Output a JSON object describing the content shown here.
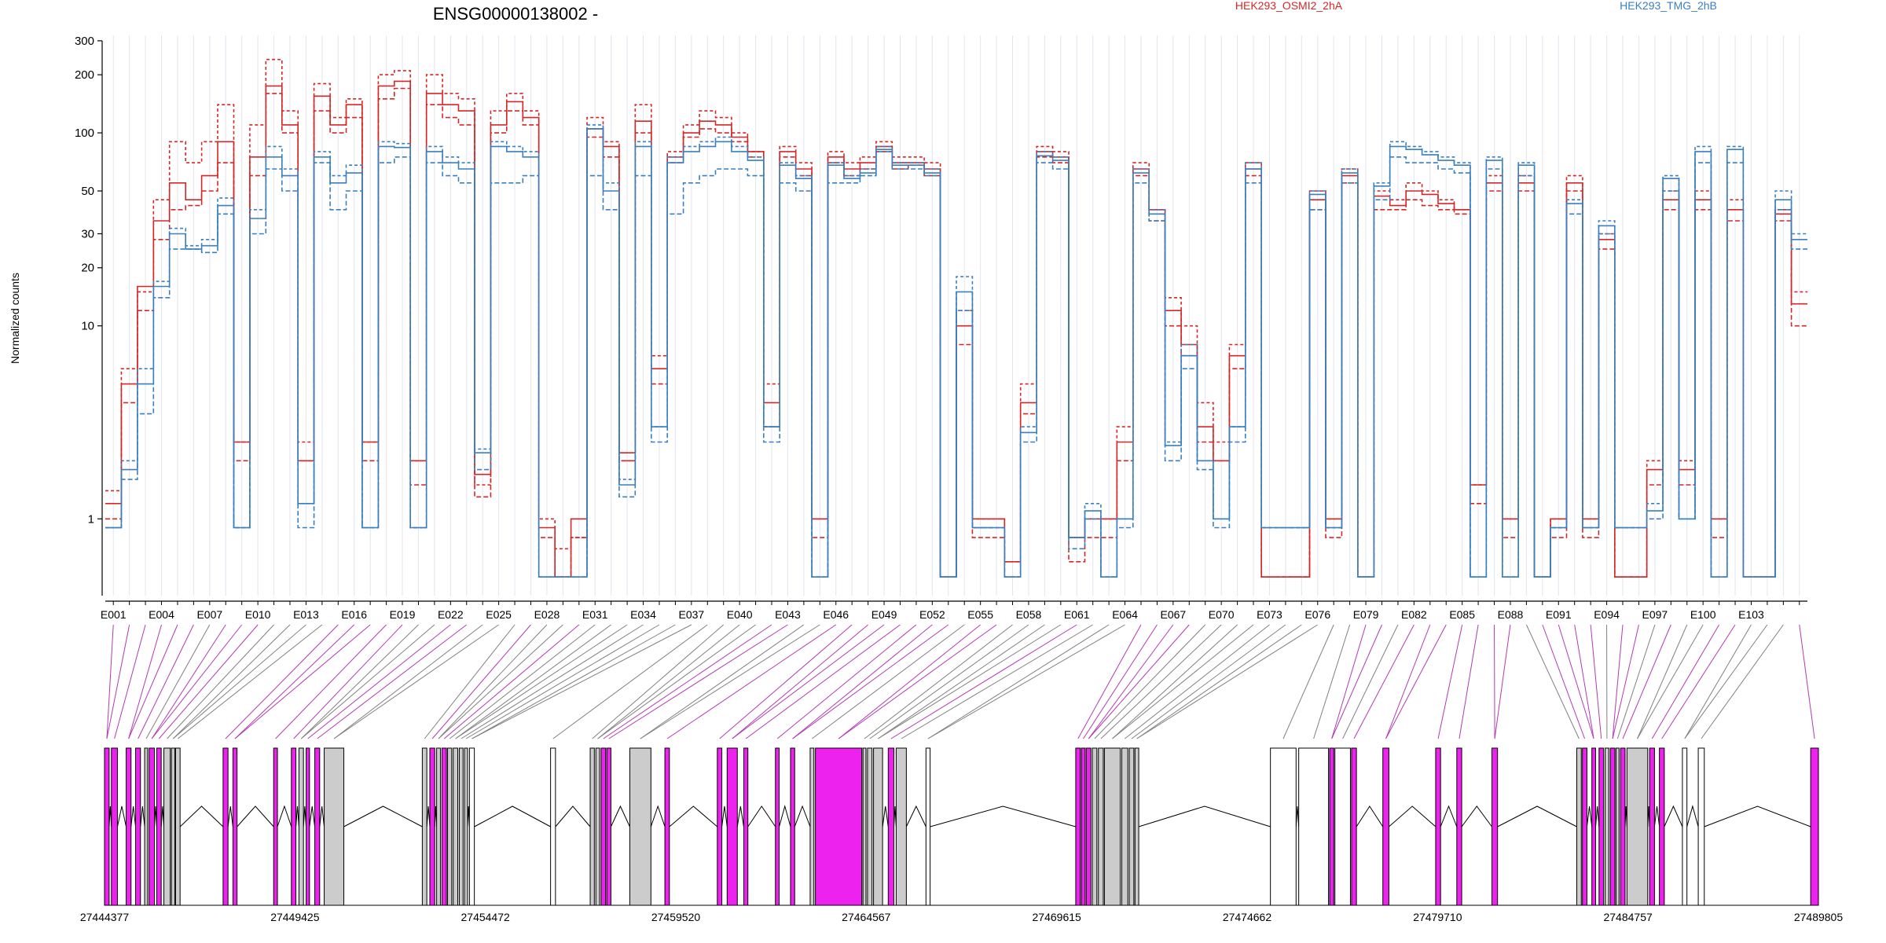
{
  "title": "ENSG00000138002 -",
  "chart_data": {
    "type": "line",
    "title": "ENSG00000138002 -",
    "ylabel": "Normalized counts",
    "yscale": "log",
    "ylim": [
      0.4,
      320
    ],
    "y_ticks": [
      1,
      10,
      20,
      30,
      50,
      100,
      200,
      300
    ],
    "grid": "vertical",
    "legend": [
      {
        "label": "HEK293_OSMI2_2hA",
        "color": "#d62728"
      },
      {
        "label": "HEK293_TMG_2hB",
        "color": "#3a7fc0"
      }
    ],
    "exon_ticks": [
      "E001",
      "E004",
      "E007",
      "E010",
      "E013",
      "E016",
      "E019",
      "E022",
      "E025",
      "E028",
      "E031",
      "E034",
      "E037",
      "E040",
      "E043",
      "E046",
      "E049",
      "E052",
      "E055",
      "E058",
      "E061",
      "E064",
      "E067",
      "E070",
      "E073",
      "E076",
      "E079",
      "E082",
      "E085",
      "E088",
      "E091",
      "E094",
      "E097",
      "E100",
      "E103"
    ],
    "exon_count": 106,
    "series": [
      {
        "group": "HEK293_OSMI2_2hA",
        "color": "#d62728",
        "dash": "4,3",
        "values": [
          1.4,
          6,
          15,
          45,
          90,
          70,
          90,
          140,
          2.5,
          110,
          240,
          130,
          2.5,
          180,
          120,
          150,
          2.5,
          200,
          210,
          2,
          200,
          160,
          150,
          1.5,
          130,
          160,
          130,
          1,
          0.7,
          0.8,
          120,
          90,
          2,
          140,
          7,
          80,
          110,
          130,
          120,
          100,
          80,
          5,
          85,
          70,
          1,
          80,
          70,
          75,
          90,
          75,
          75,
          70,
          0.5,
          12,
          1,
          1,
          0.6,
          5,
          85,
          80,
          0.8,
          1,
          1,
          3,
          70,
          40,
          14,
          10,
          4,
          2.5,
          8,
          70,
          0.5,
          0.5,
          0.5,
          50,
          1,
          65,
          0.5,
          50,
          45,
          55,
          50,
          45,
          40,
          1.5,
          60,
          1,
          60,
          0.5,
          1,
          60,
          1,
          30,
          0.5,
          0.5,
          2,
          50,
          2,
          50,
          1,
          45,
          0.5,
          0.5,
          40,
          15
        ]
      },
      {
        "group": "HEK293_OSMI2_2hA",
        "color": "#d62728",
        "dash": "none",
        "values": [
          1.2,
          5,
          16,
          35,
          55,
          45,
          60,
          90,
          2.5,
          75,
          175,
          110,
          2,
          155,
          110,
          140,
          2.5,
          175,
          185,
          2,
          160,
          140,
          130,
          1.7,
          110,
          145,
          120,
          0.9,
          0.5,
          1,
          105,
          85,
          2.2,
          115,
          6,
          75,
          100,
          115,
          110,
          95,
          80,
          4,
          80,
          65,
          1,
          75,
          65,
          70,
          85,
          70,
          70,
          65,
          0.5,
          10,
          1,
          1,
          0.6,
          4,
          80,
          75,
          0.8,
          1,
          1,
          2.5,
          65,
          40,
          12,
          8,
          3,
          2,
          7,
          65,
          0.5,
          0.5,
          0.5,
          45,
          1,
          60,
          0.5,
          47,
          42,
          50,
          48,
          43,
          40,
          1.5,
          55,
          1,
          55,
          0.5,
          1,
          55,
          1,
          28,
          0.5,
          0.5,
          1.8,
          45,
          1.8,
          45,
          1,
          40,
          0.5,
          0.5,
          38,
          13
        ]
      },
      {
        "group": "HEK293_OSMI2_2hA",
        "color": "#d62728",
        "dash": "6,3",
        "values": [
          1,
          4,
          12,
          28,
          40,
          42,
          50,
          70,
          2,
          60,
          160,
          100,
          2,
          130,
          100,
          120,
          2,
          150,
          170,
          1.5,
          140,
          120,
          110,
          1.3,
          100,
          130,
          110,
          0.8,
          0.5,
          0.8,
          95,
          75,
          2,
          100,
          5,
          70,
          95,
          105,
          100,
          90,
          75,
          3,
          75,
          60,
          0.8,
          70,
          60,
          65,
          80,
          65,
          68,
          60,
          0.5,
          8,
          0.8,
          0.8,
          0.5,
          3.5,
          75,
          70,
          0.6,
          0.8,
          0.8,
          2,
          60,
          35,
          10,
          7,
          2.5,
          2,
          6,
          60,
          0.5,
          0.5,
          0.5,
          40,
          0.8,
          55,
          0.5,
          40,
          40,
          45,
          42,
          40,
          38,
          1.2,
          50,
          0.8,
          50,
          0.5,
          0.8,
          50,
          0.8,
          25,
          0.5,
          0.5,
          1.5,
          40,
          1.5,
          40,
          0.8,
          35,
          0.5,
          0.5,
          35,
          10
        ]
      },
      {
        "group": "HEK293_TMG_2hB",
        "color": "#3a7fc0",
        "dash": "4,3",
        "values": [
          0.9,
          2,
          6,
          17,
          32,
          26,
          28,
          46,
          0.9,
          40,
          85,
          65,
          1.2,
          80,
          60,
          68,
          0.9,
          90,
          88,
          0.9,
          85,
          75,
          70,
          2.3,
          90,
          85,
          80,
          0.5,
          0.5,
          0.5,
          110,
          55,
          1.6,
          90,
          3,
          75,
          85,
          90,
          95,
          85,
          75,
          3,
          70,
          60,
          0.5,
          70,
          60,
          65,
          85,
          70,
          70,
          65,
          0.5,
          18,
          0.9,
          0.9,
          0.5,
          3,
          80,
          75,
          0.8,
          1.2,
          0.5,
          1,
          65,
          40,
          2.5,
          8,
          2,
          1,
          3,
          70,
          0.9,
          0.9,
          0.9,
          50,
          0.9,
          65,
          0.5,
          55,
          90,
          85,
          80,
          75,
          70,
          0.5,
          75,
          0.5,
          70,
          0.5,
          0.9,
          45,
          0.9,
          35,
          0.9,
          0.9,
          1.2,
          60,
          1,
          85,
          0.5,
          85,
          0.5,
          0.5,
          50,
          30
        ]
      },
      {
        "group": "HEK293_TMG_2hB",
        "color": "#3a7fc0",
        "dash": "none",
        "values": [
          0.9,
          1.8,
          5,
          16,
          30,
          25,
          26,
          42,
          0.9,
          36,
          75,
          60,
          1.2,
          75,
          55,
          62,
          0.9,
          85,
          84,
          0.9,
          80,
          70,
          65,
          2.2,
          85,
          80,
          75,
          0.5,
          0.5,
          0.5,
          105,
          50,
          1.5,
          85,
          3,
          70,
          80,
          85,
          90,
          80,
          72,
          3,
          68,
          58,
          0.5,
          68,
          58,
          62,
          82,
          68,
          68,
          62,
          0.5,
          15,
          0.9,
          0.9,
          0.5,
          2.8,
          76,
          72,
          0.8,
          1.1,
          0.5,
          1,
          62,
          38,
          2.4,
          7,
          2,
          1,
          3,
          65,
          0.9,
          0.9,
          0.9,
          48,
          0.9,
          62,
          0.5,
          53,
          85,
          82,
          77,
          72,
          68,
          0.5,
          72,
          0.5,
          68,
          0.5,
          0.9,
          43,
          0.9,
          33,
          0.9,
          0.9,
          1.1,
          58,
          1,
          80,
          0.5,
          82,
          0.5,
          0.5,
          45,
          28
        ]
      },
      {
        "group": "HEK293_TMG_2hB",
        "color": "#3a7fc0",
        "dash": "6,3",
        "values": [
          0.9,
          1.6,
          3.5,
          14,
          25,
          25,
          24,
          38,
          0.9,
          30,
          65,
          50,
          0.9,
          70,
          40,
          50,
          0.9,
          70,
          75,
          0.9,
          70,
          60,
          55,
          1.8,
          55,
          55,
          60,
          0.5,
          0.5,
          0.5,
          60,
          40,
          1.3,
          60,
          2.5,
          38,
          55,
          60,
          65,
          65,
          60,
          2.5,
          55,
          50,
          0.5,
          55,
          55,
          60,
          80,
          65,
          65,
          60,
          0.5,
          12,
          0.9,
          0.9,
          0.5,
          2.5,
          70,
          65,
          0.7,
          1,
          0.5,
          0.9,
          55,
          35,
          2,
          6,
          1.8,
          0.9,
          2.5,
          55,
          0.9,
          0.9,
          0.9,
          40,
          0.9,
          55,
          0.5,
          45,
          75,
          70,
          70,
          65,
          62,
          0.5,
          65,
          0.5,
          60,
          0.5,
          0.9,
          38,
          0.9,
          30,
          0.9,
          0.9,
          1,
          50,
          1,
          70,
          0.5,
          70,
          0.5,
          0.5,
          40,
          25
        ]
      }
    ],
    "genomic_axis": {
      "start": 27444377,
      "end": 27489805,
      "tick_labels": [
        "27444377",
        "27449425",
        "27454472",
        "27459520",
        "27464567",
        "27469615",
        "27474662",
        "27479710",
        "27484757",
        "27489805"
      ]
    },
    "exon_colors": {
      "differential": "#ee22ee",
      "default": "#cccccc",
      "empty": "#ffffff"
    }
  },
  "gene_model": {
    "exon_blocks": [
      {
        "start": 27444377,
        "end": 27444500,
        "fill": "differential"
      },
      {
        "start": 27444560,
        "end": 27444720,
        "fill": "differential"
      },
      {
        "start": 27444950,
        "end": 27445080,
        "fill": "differential"
      },
      {
        "start": 27445200,
        "end": 27445330,
        "fill": "differential"
      },
      {
        "start": 27445440,
        "end": 27445520,
        "fill": "default"
      },
      {
        "start": 27445560,
        "end": 27445700,
        "fill": "differential"
      },
      {
        "start": 27445760,
        "end": 27445880,
        "fill": "differential"
      },
      {
        "start": 27445950,
        "end": 27446120,
        "fill": "default"
      },
      {
        "start": 27446150,
        "end": 27446240,
        "fill": "default"
      },
      {
        "start": 27446260,
        "end": 27446380,
        "fill": "default"
      },
      {
        "start": 27447520,
        "end": 27447650,
        "fill": "differential"
      },
      {
        "start": 27447780,
        "end": 27447890,
        "fill": "differential"
      },
      {
        "start": 27448860,
        "end": 27448960,
        "fill": "differential"
      },
      {
        "start": 27449330,
        "end": 27449450,
        "fill": "differential"
      },
      {
        "start": 27449530,
        "end": 27449650,
        "fill": "default"
      },
      {
        "start": 27449720,
        "end": 27449810,
        "fill": "differential"
      },
      {
        "start": 27449950,
        "end": 27450080,
        "fill": "differential"
      },
      {
        "start": 27450200,
        "end": 27450720,
        "fill": "default"
      },
      {
        "start": 27452800,
        "end": 27452920,
        "fill": "default"
      },
      {
        "start": 27453000,
        "end": 27453130,
        "fill": "differential"
      },
      {
        "start": 27453180,
        "end": 27453280,
        "fill": "default"
      },
      {
        "start": 27453320,
        "end": 27453440,
        "fill": "differential"
      },
      {
        "start": 27453470,
        "end": 27453580,
        "fill": "default"
      },
      {
        "start": 27453620,
        "end": 27453740,
        "fill": "default"
      },
      {
        "start": 27453780,
        "end": 27453880,
        "fill": "default"
      },
      {
        "start": 27453920,
        "end": 27454000,
        "fill": "default"
      },
      {
        "start": 27454050,
        "end": 27454180,
        "fill": "empty"
      },
      {
        "start": 27456200,
        "end": 27456330,
        "fill": "empty"
      },
      {
        "start": 27457250,
        "end": 27457360,
        "fill": "default"
      },
      {
        "start": 27457400,
        "end": 27457500,
        "fill": "default"
      },
      {
        "start": 27457540,
        "end": 27457660,
        "fill": "differential"
      },
      {
        "start": 27457690,
        "end": 27457800,
        "fill": "differential"
      },
      {
        "start": 27458300,
        "end": 27458860,
        "fill": "default"
      },
      {
        "start": 27459230,
        "end": 27459350,
        "fill": "differential"
      },
      {
        "start": 27460620,
        "end": 27460740,
        "fill": "differential"
      },
      {
        "start": 27460880,
        "end": 27461150,
        "fill": "differential"
      },
      {
        "start": 27461320,
        "end": 27461430,
        "fill": "differential"
      },
      {
        "start": 27462160,
        "end": 27462260,
        "fill": "differential"
      },
      {
        "start": 27462560,
        "end": 27462670,
        "fill": "differential"
      },
      {
        "start": 27463080,
        "end": 27463180,
        "fill": "default"
      },
      {
        "start": 27463220,
        "end": 27464450,
        "fill": "differential"
      },
      {
        "start": 27464480,
        "end": 27464560,
        "fill": "default"
      },
      {
        "start": 27464600,
        "end": 27464720,
        "fill": "default"
      },
      {
        "start": 27464760,
        "end": 27465000,
        "fill": "default"
      },
      {
        "start": 27465150,
        "end": 27465300,
        "fill": "differential"
      },
      {
        "start": 27465360,
        "end": 27465630,
        "fill": "default"
      },
      {
        "start": 27466150,
        "end": 27466260,
        "fill": "empty"
      },
      {
        "start": 27470120,
        "end": 27470240,
        "fill": "differential"
      },
      {
        "start": 27470270,
        "end": 27470370,
        "fill": "differential"
      },
      {
        "start": 27470400,
        "end": 27470520,
        "fill": "differential"
      },
      {
        "start": 27470560,
        "end": 27470680,
        "fill": "default"
      },
      {
        "start": 27470720,
        "end": 27470850,
        "fill": "default"
      },
      {
        "start": 27470880,
        "end": 27471300,
        "fill": "default"
      },
      {
        "start": 27471340,
        "end": 27471500,
        "fill": "default"
      },
      {
        "start": 27471540,
        "end": 27471660,
        "fill": "default"
      },
      {
        "start": 27471690,
        "end": 27471790,
        "fill": "default"
      },
      {
        "start": 27475280,
        "end": 27475960,
        "fill": "empty"
      },
      {
        "start": 27476030,
        "end": 27476820,
        "fill": "empty"
      },
      {
        "start": 27476850,
        "end": 27476960,
        "fill": "differential"
      },
      {
        "start": 27476990,
        "end": 27477400,
        "fill": "empty"
      },
      {
        "start": 27477430,
        "end": 27477560,
        "fill": "differential"
      },
      {
        "start": 27478260,
        "end": 27478420,
        "fill": "differential"
      },
      {
        "start": 27479660,
        "end": 27479790,
        "fill": "differential"
      },
      {
        "start": 27480220,
        "end": 27480350,
        "fill": "differential"
      },
      {
        "start": 27481150,
        "end": 27481300,
        "fill": "differential"
      },
      {
        "start": 27483400,
        "end": 27483520,
        "fill": "default"
      },
      {
        "start": 27483550,
        "end": 27483670,
        "fill": "differential"
      },
      {
        "start": 27483800,
        "end": 27483900,
        "fill": "differential"
      },
      {
        "start": 27483990,
        "end": 27484110,
        "fill": "differential"
      },
      {
        "start": 27484150,
        "end": 27484250,
        "fill": "default"
      },
      {
        "start": 27484290,
        "end": 27484410,
        "fill": "differential"
      },
      {
        "start": 27484440,
        "end": 27484520,
        "fill": "default"
      },
      {
        "start": 27484560,
        "end": 27484680,
        "fill": "differential"
      },
      {
        "start": 27484730,
        "end": 27485280,
        "fill": "default"
      },
      {
        "start": 27485330,
        "end": 27485460,
        "fill": "differential"
      },
      {
        "start": 27485590,
        "end": 27485720,
        "fill": "differential"
      },
      {
        "start": 27486200,
        "end": 27486320,
        "fill": "empty"
      },
      {
        "start": 27486620,
        "end": 27486780,
        "fill": "empty"
      },
      {
        "start": 27489600,
        "end": 27489805,
        "fill": "differential"
      }
    ]
  }
}
